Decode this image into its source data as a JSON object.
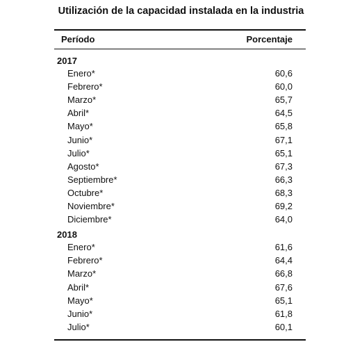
{
  "title": "Utilización de la capacidad instalada en la industria",
  "table": {
    "header": [
      "Período",
      "Porcentaje"
    ],
    "groups": [
      {
        "year": "2017",
        "rows": [
          [
            "Enero*",
            "60,6"
          ],
          [
            "Febrero*",
            "60,0"
          ],
          [
            "Marzo*",
            "65,7"
          ],
          [
            "Abril*",
            "64,5"
          ],
          [
            "Mayo*",
            "65,8"
          ],
          [
            "Junio*",
            "67,1"
          ],
          [
            "Julio*",
            "65,1"
          ],
          [
            "Agosto*",
            "67,3"
          ],
          [
            "Septiembre*",
            "66,3"
          ],
          [
            "Octubre*",
            "68,3"
          ],
          [
            "Noviembre*",
            "69,2"
          ],
          [
            "Diciembre*",
            "64,0"
          ]
        ]
      },
      {
        "year": "2018",
        "rows": [
          [
            "Enero*",
            "61,6"
          ],
          [
            "Febrero*",
            "64,4"
          ],
          [
            "Marzo*",
            "66,8"
          ],
          [
            "Abril*",
            "67,6"
          ],
          [
            "Mayo*",
            "65,1"
          ],
          [
            "Junio*",
            "61,8"
          ],
          [
            "Julio*",
            "60,1"
          ]
        ]
      }
    ]
  }
}
